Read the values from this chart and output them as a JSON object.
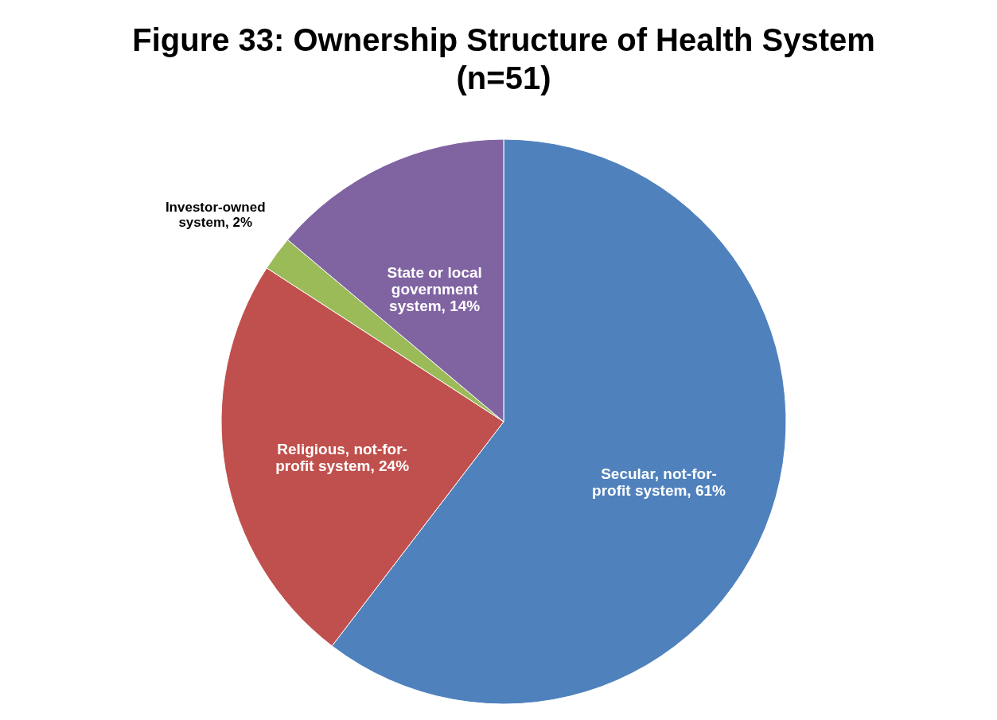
{
  "chart_data": {
    "type": "pie",
    "title": "Figure 33: Ownership Structure of Health System (n=51)",
    "categories": [
      "Secular, not-for-profit system",
      "Religious, not-for-profit system",
      "Investor-owned system",
      "State or local government system"
    ],
    "values": [
      61,
      24,
      2,
      14
    ],
    "value_labels": [
      "61%",
      "24%",
      "2%",
      "14%"
    ],
    "colors": [
      "#4f81bd",
      "#c0504d",
      "#9bbb59",
      "#8064a2"
    ]
  }
}
